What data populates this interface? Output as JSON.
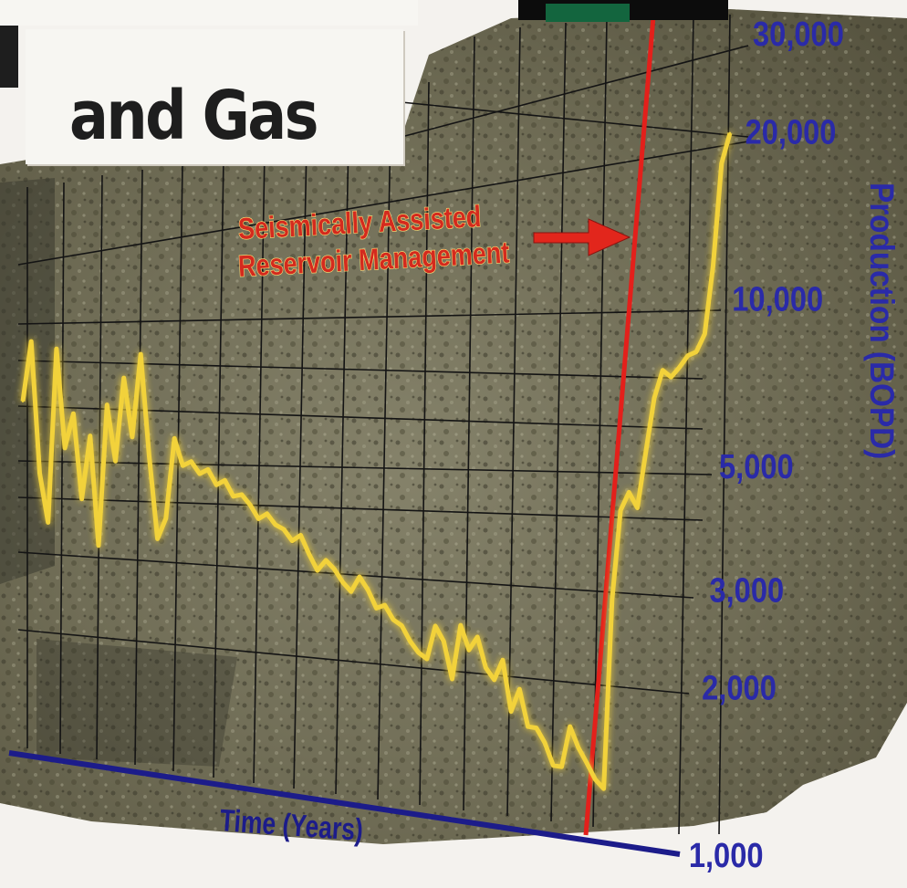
{
  "header": {
    "title_line1": "",
    "title_line2": "and Gas"
  },
  "annotation": {
    "line1": "Seismically Assisted",
    "line2": "Reservoir Management"
  },
  "colors": {
    "production_line": "#f2d23a",
    "intervention_line": "#e3201b",
    "axis_labels": "#2a2aa8",
    "baseline": "#1c1c8a",
    "grid": "#141414"
  },
  "chart_data": {
    "type": "line",
    "title": "",
    "xlabel": "Time (Years)",
    "ylabel": "Production (BOPD)",
    "y_scale": "log",
    "ylim": [
      1000,
      30000
    ],
    "y_ticks": [
      1000,
      2000,
      3000,
      5000,
      10000,
      20000,
      30000
    ],
    "y_tick_labels": [
      "1,000",
      "2,000",
      "3,000",
      "5,000",
      "10,000",
      "20,000",
      "30,000"
    ],
    "x_tick_labels": [],
    "annotation": "Seismically Assisted Reservoir Management",
    "series": [
      {
        "values": [
          5200,
          6700,
          3900,
          3200,
          6600,
          4400,
          5100,
          3600,
          4700,
          3000,
          5400,
          4300,
          6100,
          4800,
          6800,
          4500,
          3200,
          3500,
          4900,
          4400,
          4500,
          4300,
          4400,
          4150,
          4250,
          4000,
          4050,
          3900,
          3700,
          3800,
          3650,
          3600,
          3450,
          3550,
          3300,
          3100,
          3250,
          3150,
          3000,
          2900,
          3100,
          2950,
          2750,
          2800,
          2650,
          2600,
          2450,
          2350,
          2300,
          2650,
          2500,
          2150,
          2700,
          2450,
          2600,
          2300,
          2200,
          2400,
          1950,
          2150,
          1850,
          1850,
          1750,
          1600,
          1600,
          1900,
          1750,
          1650,
          1550,
          1500,
          3300,
          4800,
          5200,
          4900,
          6200,
          7800,
          8800,
          8600,
          9000,
          9500,
          9700,
          10500,
          14000,
          21500,
          24500
        ]
      }
    ]
  }
}
